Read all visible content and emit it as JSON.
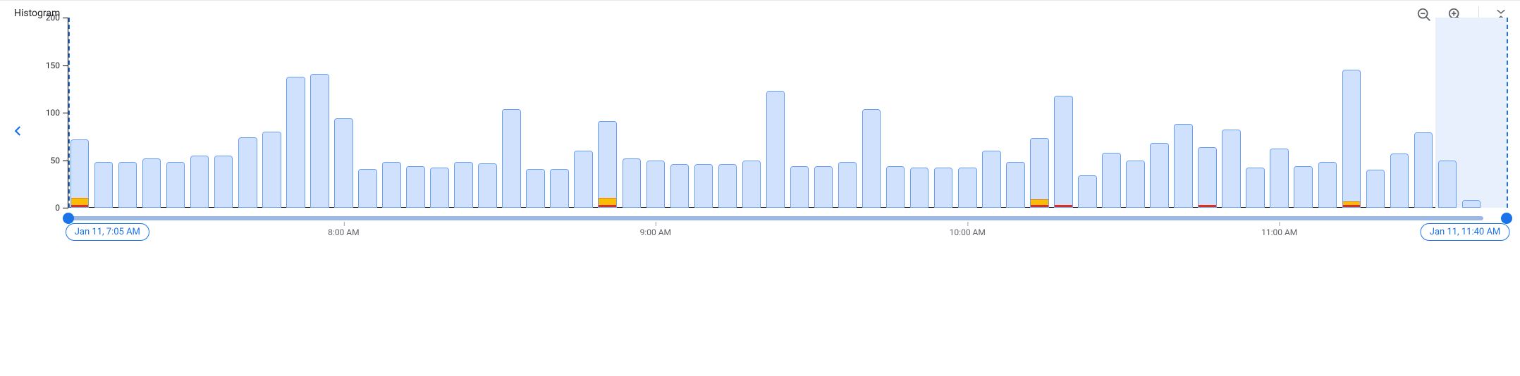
{
  "title": "Histogram",
  "colors": {
    "axis": "#000000",
    "bar_fill": "#cfe1fd",
    "bar_border": "#669df6",
    "warn": "#fbbc04",
    "warn_border": "#ea8600",
    "error": "#d93025",
    "accent": "#1a73e8",
    "sel_dash": "#1a73e8",
    "sel_shade": "#e8f0fe",
    "track": "#9bb7e6",
    "tick_text": "#5f6368",
    "icon": "#5f6368",
    "divider": "#e8eaed"
  },
  "typography": {
    "title_fontsize": 14,
    "axis_fontsize": 12,
    "chip_fontsize": 13,
    "font_family": "Roboto, Arial, sans-serif"
  },
  "chart": {
    "type": "histogram",
    "ylim": [
      0,
      200
    ],
    "ytick_step": 50,
    "yticks": [
      0,
      50,
      100,
      150,
      200
    ],
    "bar_width_ratio": 0.78,
    "bar_border_radius": 4,
    "bars": [
      {
        "v": 72,
        "warn": 10,
        "err": 2
      },
      {
        "v": 48
      },
      {
        "v": 48
      },
      {
        "v": 52
      },
      {
        "v": 48
      },
      {
        "v": 55
      },
      {
        "v": 55
      },
      {
        "v": 74
      },
      {
        "v": 80
      },
      {
        "v": 138
      },
      {
        "v": 141
      },
      {
        "v": 94
      },
      {
        "v": 41
      },
      {
        "v": 48
      },
      {
        "v": 44
      },
      {
        "v": 42
      },
      {
        "v": 48
      },
      {
        "v": 47
      },
      {
        "v": 104
      },
      {
        "v": 41
      },
      {
        "v": 41
      },
      {
        "v": 60
      },
      {
        "v": 91,
        "warn": 10,
        "err": 2
      },
      {
        "v": 52
      },
      {
        "v": 50
      },
      {
        "v": 46
      },
      {
        "v": 46
      },
      {
        "v": 46
      },
      {
        "v": 50
      },
      {
        "v": 123
      },
      {
        "v": 44
      },
      {
        "v": 44
      },
      {
        "v": 48
      },
      {
        "v": 104
      },
      {
        "v": 44
      },
      {
        "v": 42
      },
      {
        "v": 42
      },
      {
        "v": 42
      },
      {
        "v": 60
      },
      {
        "v": 48
      },
      {
        "v": 73,
        "warn": 8,
        "err": 2
      },
      {
        "v": 118,
        "err": 2
      },
      {
        "v": 34
      },
      {
        "v": 58
      },
      {
        "v": 50
      },
      {
        "v": 68
      },
      {
        "v": 88
      },
      {
        "v": 64,
        "err": 2
      },
      {
        "v": 82
      },
      {
        "v": 42
      },
      {
        "v": 62
      },
      {
        "v": 44
      },
      {
        "v": 48
      },
      {
        "v": 145,
        "warn": 6,
        "err": 2
      },
      {
        "v": 40
      },
      {
        "v": 57
      },
      {
        "v": 79
      },
      {
        "v": 50
      },
      {
        "v": 8
      }
    ],
    "xticks": [
      {
        "pos": 11,
        "label": "8:00 AM"
      },
      {
        "pos": 24,
        "label": "9:00 AM"
      },
      {
        "pos": 37,
        "label": "10:00 AM"
      },
      {
        "pos": 50,
        "label": "11:00 AM"
      }
    ],
    "selection": {
      "start_bar": 0,
      "end_bar": 59,
      "start_label": "Jan 11, 7:05 AM",
      "end_label": "Jan 11, 11:40 AM"
    },
    "future_shade_from_bar": 57
  },
  "toolbar": {
    "zoom_out": "zoom-out",
    "zoom_in": "zoom-in",
    "collapse": "collapse"
  }
}
